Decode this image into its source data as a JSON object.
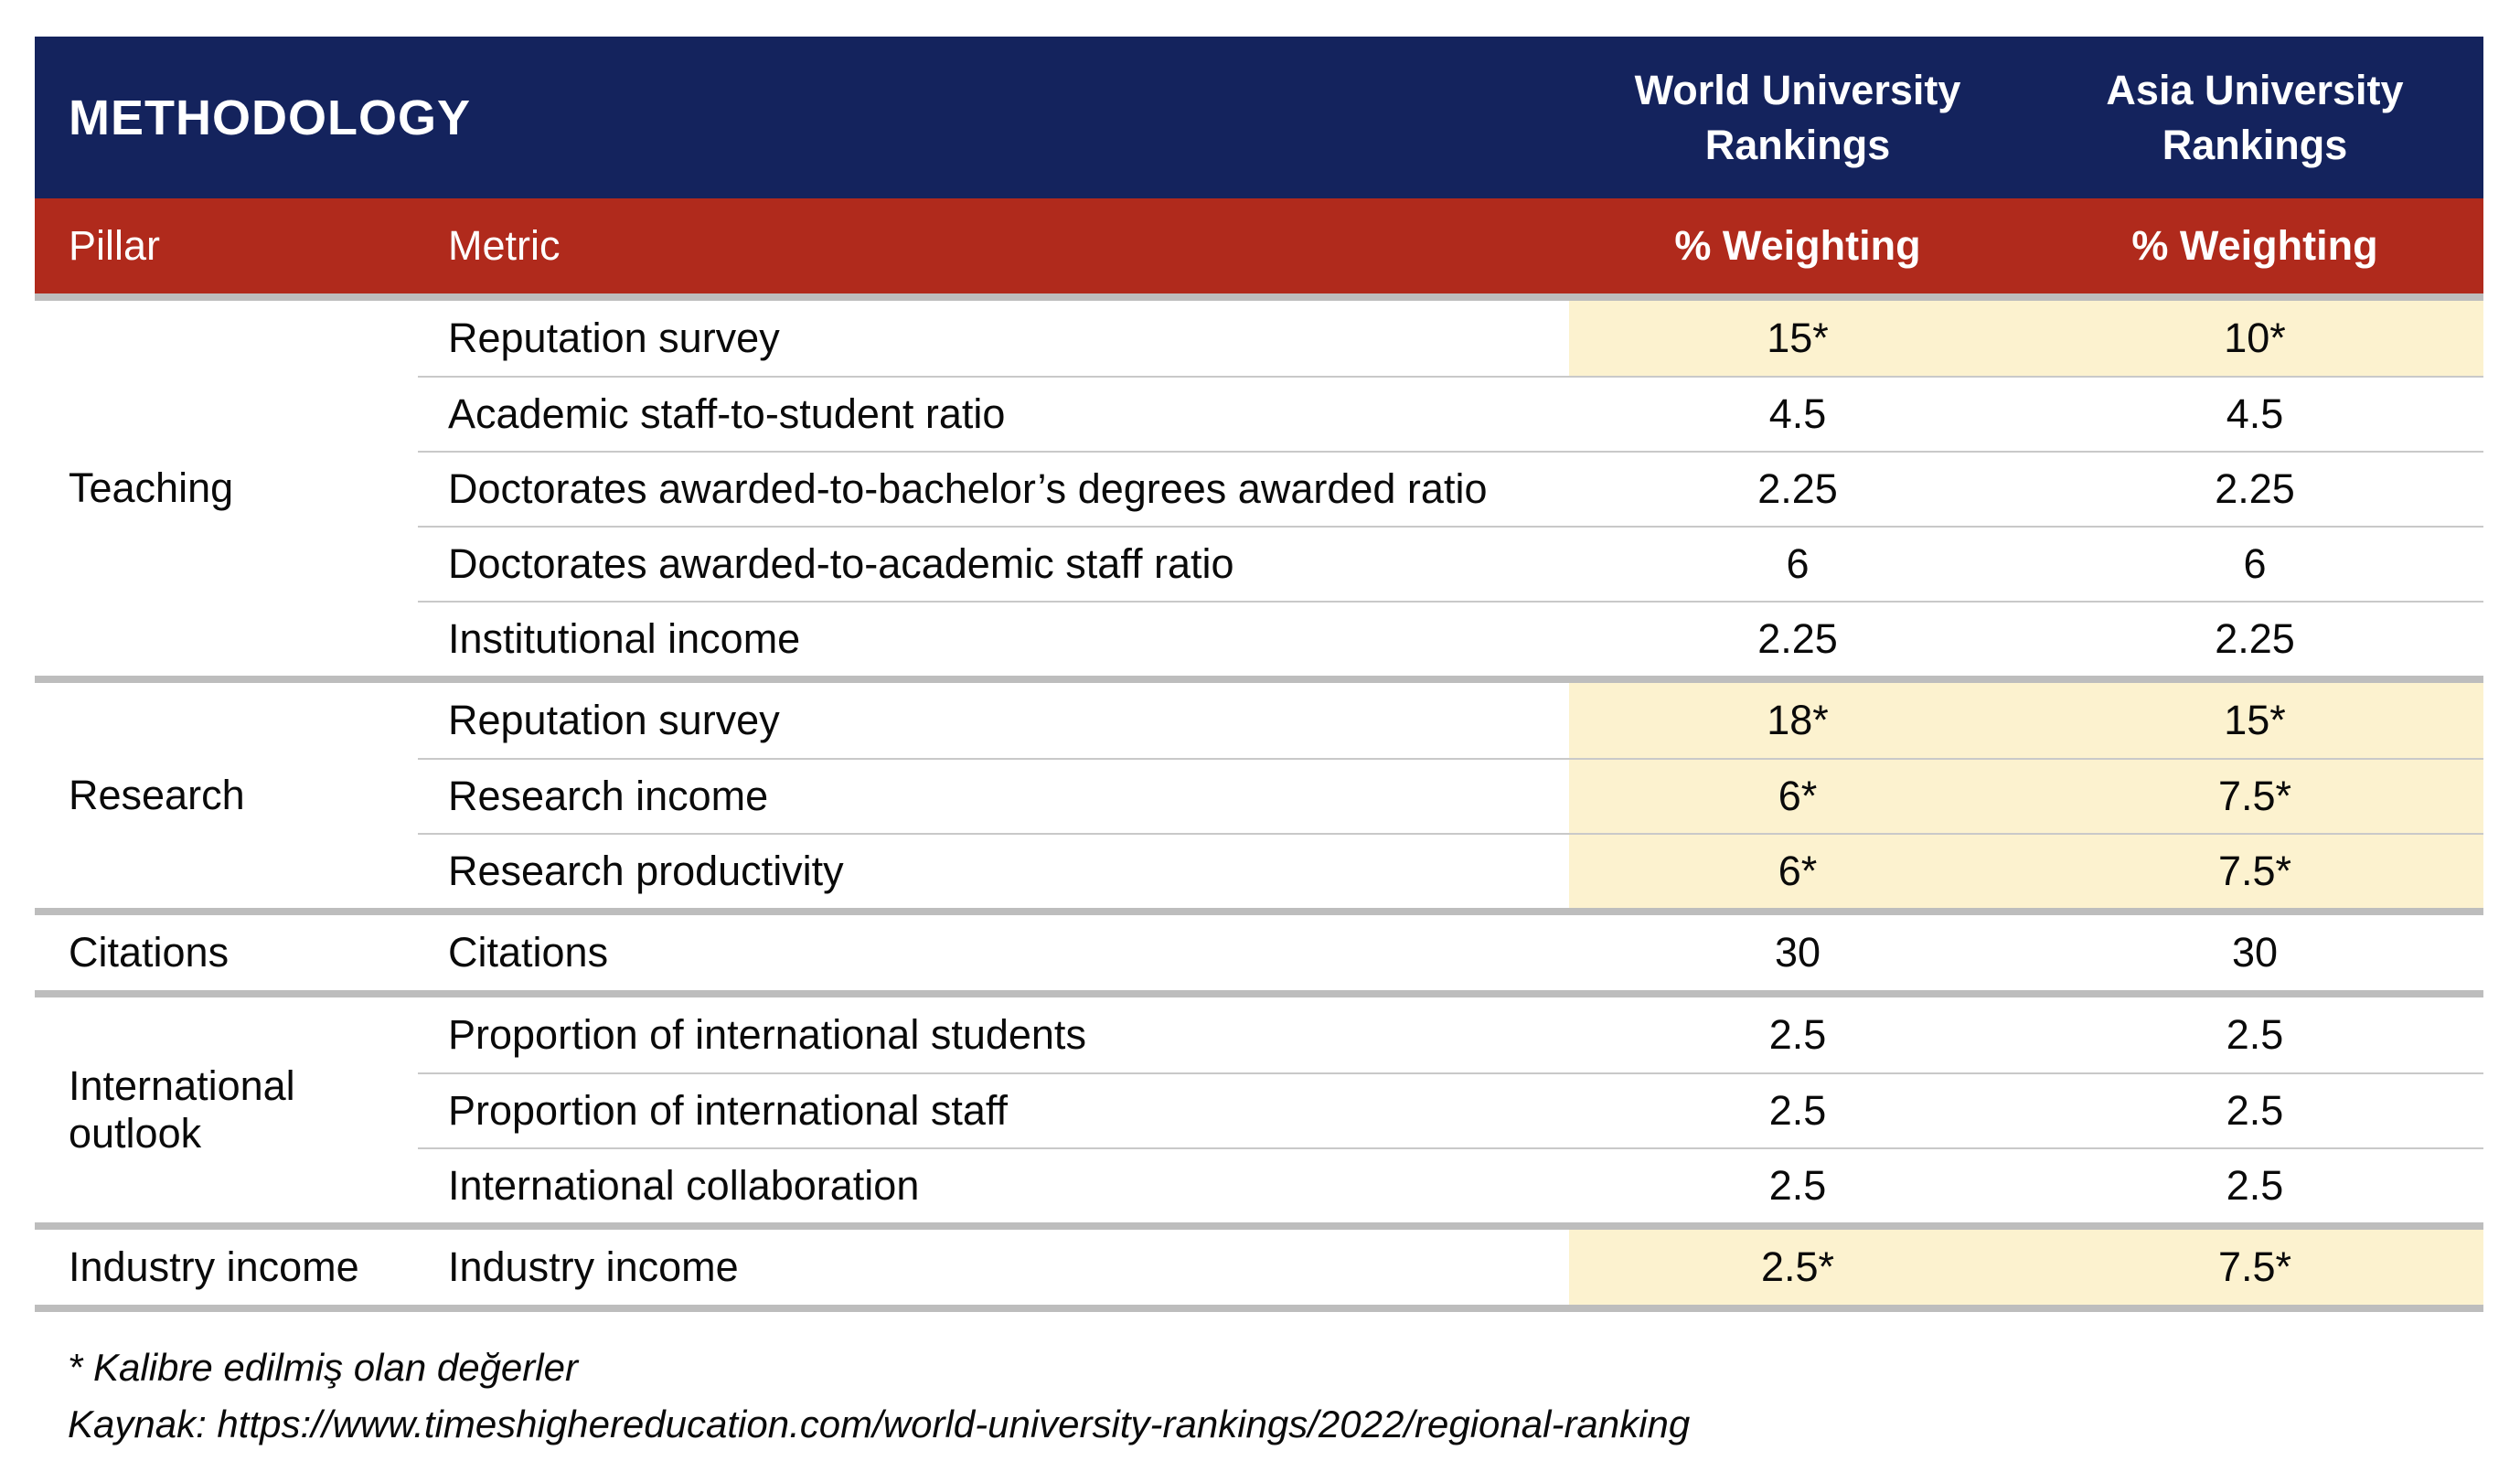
{
  "table": {
    "title": "METHODOLOGY",
    "header": {
      "world": "World University Rankings",
      "asia": "Asia University Rankings",
      "pillar": "Pillar",
      "metric": "Metric",
      "weighting_world": "% Weighting",
      "weighting_asia": "% Weighting"
    },
    "groups": [
      {
        "pillar": "Teaching",
        "rows": [
          {
            "metric": "Reputation survey",
            "world": "15*",
            "asia": "10*",
            "highlight": true
          },
          {
            "metric": "Academic staff-to-student ratio",
            "world": "4.5",
            "asia": "4.5",
            "highlight": false
          },
          {
            "metric": "Doctorates awarded-to-bachelor’s degrees awarded ratio",
            "world": "2.25",
            "asia": "2.25",
            "highlight": false
          },
          {
            "metric": "Doctorates awarded-to-academic staff ratio",
            "world": "6",
            "asia": "6",
            "highlight": false
          },
          {
            "metric": "Institutional income",
            "world": "2.25",
            "asia": "2.25",
            "highlight": false
          }
        ]
      },
      {
        "pillar": "Research",
        "rows": [
          {
            "metric": "Reputation survey",
            "world": "18*",
            "asia": "15*",
            "highlight": true
          },
          {
            "metric": "Research income",
            "world": "6*",
            "asia": "7.5*",
            "highlight": true
          },
          {
            "metric": "Research productivity",
            "world": "6*",
            "asia": "7.5*",
            "highlight": true
          }
        ]
      },
      {
        "pillar": "Citations",
        "rows": [
          {
            "metric": "Citations",
            "world": "30",
            "asia": "30",
            "highlight": false
          }
        ]
      },
      {
        "pillar": "International outlook",
        "rows": [
          {
            "metric": "Proportion of international students",
            "world": "2.5",
            "asia": "2.5",
            "highlight": false
          },
          {
            "metric": "Proportion of international staff",
            "world": "2.5",
            "asia": "2.5",
            "highlight": false
          },
          {
            "metric": "International collaboration",
            "world": "2.5",
            "asia": "2.5",
            "highlight": false
          }
        ]
      },
      {
        "pillar": "Industry income",
        "rows": [
          {
            "metric": "Industry income",
            "world": "2.5*",
            "asia": "7.5*",
            "highlight": true
          }
        ]
      }
    ],
    "footnotes": [
      "* Kalibre edilmiş olan değerler",
      "Kaynak: https://www.timeshighereducation.com/world-university-rankings/2022/regional-ranking"
    ]
  },
  "colors": {
    "navy": "#14235d",
    "red": "#b02a1c",
    "highlight": "#fcf2cf",
    "divider": "#bdbdbd",
    "row_line": "#c9c9c9"
  }
}
